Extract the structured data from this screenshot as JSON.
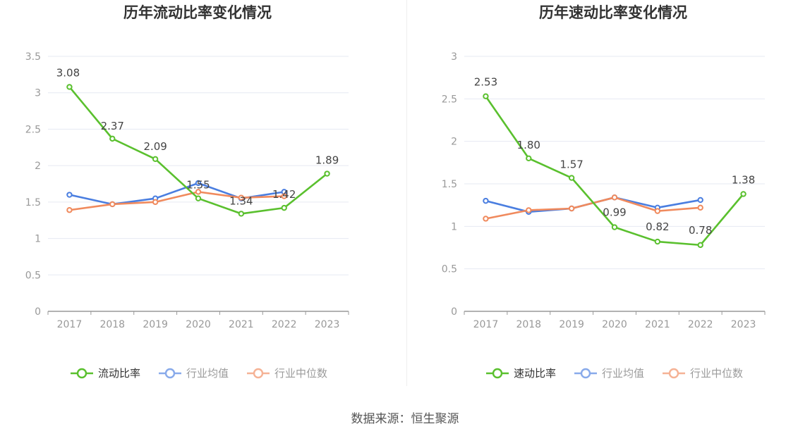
{
  "colors": {
    "main": "#5ac02e",
    "avg": "#4a7ee0",
    "median": "#f08a5d",
    "grid": "#e6e9f2",
    "axis": "#999999"
  },
  "source_text": "数据来源：恒生聚源",
  "chart_data": [
    {
      "type": "line",
      "title": "历年流动比率变化情况",
      "categories": [
        "2017",
        "2018",
        "2019",
        "2020",
        "2021",
        "2022",
        "2023"
      ],
      "ylim": [
        0,
        3.5
      ],
      "yticks": [
        0,
        0.5,
        1,
        1.5,
        2,
        2.5,
        3,
        3.5
      ],
      "ytick_labels": [
        "0",
        "0.5",
        "1",
        "1.5",
        "2",
        "2.5",
        "3",
        "3.5"
      ],
      "grid": true,
      "legend_position": "bottom",
      "series": [
        {
          "name": "流动比率",
          "key": "main",
          "values": [
            3.08,
            2.37,
            2.09,
            1.55,
            1.34,
            1.42,
            1.89
          ],
          "labels": [
            "3.08",
            "2.37",
            "2.09",
            "1.55",
            "1.34",
            "1.42",
            "1.89"
          ]
        },
        {
          "name": "行业均值",
          "key": "avg",
          "values": [
            1.6,
            1.47,
            1.55,
            1.76,
            1.55,
            1.64,
            null
          ]
        },
        {
          "name": "行业中位数",
          "key": "median",
          "values": [
            1.39,
            1.47,
            1.5,
            1.64,
            1.56,
            1.58,
            null
          ]
        }
      ]
    },
    {
      "type": "line",
      "title": "历年速动比率变化情况",
      "categories": [
        "2017",
        "2018",
        "2019",
        "2020",
        "2021",
        "2022",
        "2023"
      ],
      "ylim": [
        0,
        3
      ],
      "yticks": [
        0,
        0.5,
        1,
        1.5,
        2,
        2.5,
        3
      ],
      "ytick_labels": [
        "0",
        "0.5",
        "1",
        "1.5",
        "2",
        "2.5",
        "3"
      ],
      "grid": true,
      "legend_position": "bottom",
      "series": [
        {
          "name": "速动比率",
          "key": "main",
          "values": [
            2.53,
            1.8,
            1.57,
            0.99,
            0.82,
            0.78,
            1.38
          ],
          "labels": [
            "2.53",
            "1.80",
            "1.57",
            "0.99",
            "0.82",
            "0.78",
            "1.38"
          ]
        },
        {
          "name": "行业均值",
          "key": "avg",
          "values": [
            1.3,
            1.17,
            1.21,
            1.34,
            1.22,
            1.31,
            null
          ]
        },
        {
          "name": "行业中位数",
          "key": "median",
          "values": [
            1.09,
            1.19,
            1.21,
            1.34,
            1.18,
            1.22,
            null
          ]
        }
      ]
    }
  ]
}
